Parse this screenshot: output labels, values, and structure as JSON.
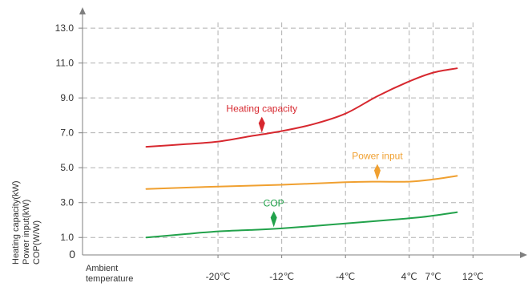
{
  "chart_data": {
    "type": "line",
    "x": [
      -29,
      -20,
      -12,
      -4,
      4,
      7,
      12
    ],
    "xticks": [
      "-20℃",
      "-12℃",
      "-4℃",
      "4℃",
      "7℃",
      "12℃"
    ],
    "xtick_values": [
      -20,
      -12,
      -4,
      4,
      7,
      12
    ],
    "x_range": [
      -37,
      18
    ],
    "xlabel": [
      "Ambient",
      "temperature"
    ],
    "yticks": [
      "1.0",
      "3.0",
      "5.0",
      "7.0",
      "9.0",
      "11.0",
      "13.0"
    ],
    "ytick_values": [
      1,
      3,
      5,
      7,
      9,
      11,
      13
    ],
    "y_origin_label": "0",
    "y_range": [
      0,
      14.2
    ],
    "ylabel": [
      "Heating capacity(kW)",
      "Power input(kW)",
      "COP(W/W)"
    ],
    "grid": true,
    "series": [
      {
        "name": "Heating capacity",
        "color": "#d7282f",
        "x": [
          -29,
          -24,
          -20,
          -16,
          -12,
          -8,
          -4,
          0,
          4,
          7,
          10
        ],
        "values": [
          6.2,
          6.35,
          6.5,
          6.8,
          7.1,
          7.5,
          8.1,
          9.1,
          9.95,
          10.45,
          10.7
        ],
        "marker_x": -14.5
      },
      {
        "name": "Power input",
        "color": "#f0a030",
        "x": [
          -29,
          -20,
          -12,
          -4,
          0,
          4,
          7,
          10
        ],
        "values": [
          3.78,
          3.92,
          4.02,
          4.17,
          4.2,
          4.2,
          4.33,
          4.53
        ],
        "marker_x": 0
      },
      {
        "name": "COP",
        "color": "#22a24b",
        "x": [
          -29,
          -24,
          -20,
          -16,
          -12,
          -4,
          4,
          7,
          10
        ],
        "values": [
          1.0,
          1.2,
          1.35,
          1.43,
          1.52,
          1.8,
          2.1,
          2.25,
          2.45
        ],
        "marker_x": -13
      }
    ]
  }
}
